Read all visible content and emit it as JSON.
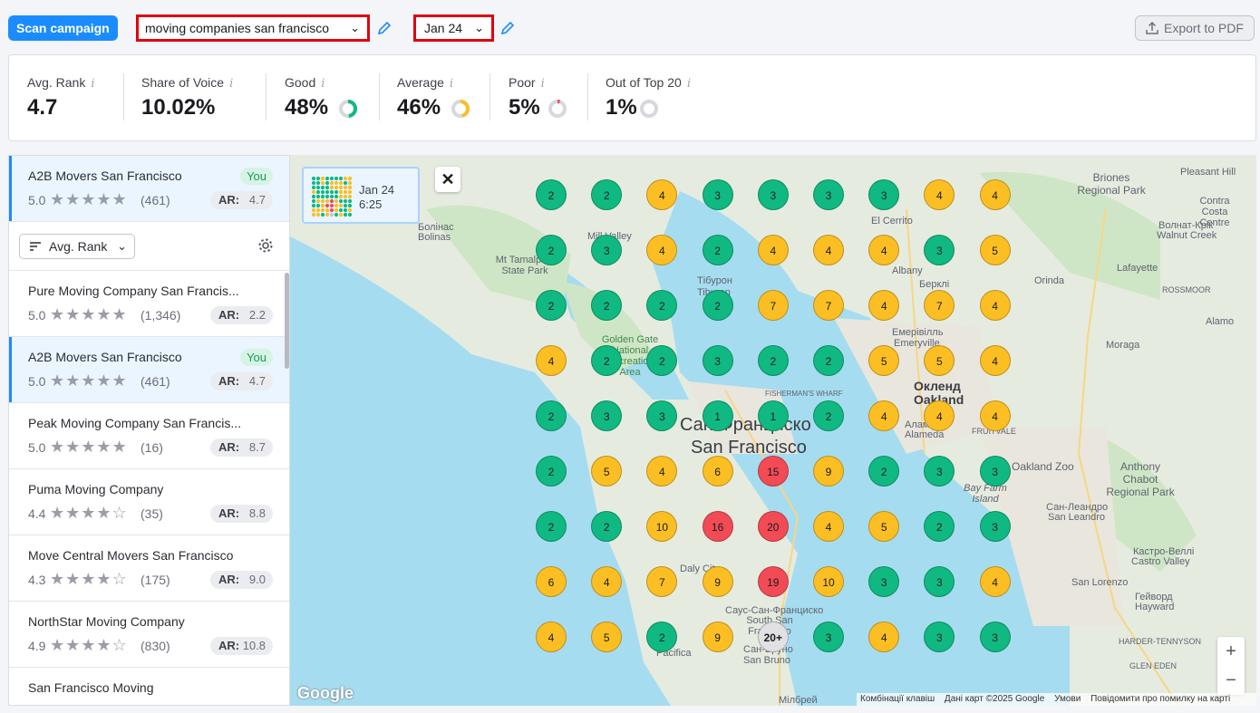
{
  "toolbar": {
    "scan_label": "Scan campaign",
    "keyword": "moving companies san francisco",
    "date": "Jan 24",
    "export_label": "Export to PDF"
  },
  "metrics": [
    {
      "label": "Avg. Rank",
      "value": "4.7"
    },
    {
      "label": "Share of Voice",
      "value": "10.02%"
    },
    {
      "label": "Good",
      "value": "48%",
      "ring_color": "#10b981",
      "fraction": 0.48
    },
    {
      "label": "Average",
      "value": "46%",
      "ring_color": "#fbbf24",
      "fraction": 0.46
    },
    {
      "label": "Poor",
      "value": "5%",
      "ring_color": "#f24b56",
      "fraction": 0.05
    },
    {
      "label": "Out of Top 20",
      "value": "1%",
      "ring_color": "#c2c5cc",
      "fraction": 0.01
    }
  ],
  "info_glyph": "i",
  "pinned": {
    "name": "A2B Movers San Francisco",
    "rating": "5.0",
    "stars": 5,
    "reviews": "(461)",
    "you": "You",
    "ar_label": "AR:",
    "ar": "4.7"
  },
  "sort": {
    "label": "Avg. Rank"
  },
  "businesses": [
    {
      "name": "Pure Moving Company San Francis...",
      "rating": "5.0",
      "stars": 5,
      "reviews": "(1,346)",
      "ar_label": "AR:",
      "ar": "2.2"
    },
    {
      "name": "A2B Movers San Francisco",
      "rating": "5.0",
      "stars": 5,
      "reviews": "(461)",
      "you": "You",
      "ar_label": "AR:",
      "ar": "4.7"
    },
    {
      "name": "Peak Moving Company San Francis...",
      "rating": "5.0",
      "stars": 5,
      "reviews": "(16)",
      "ar_label": "AR:",
      "ar": "8.7"
    },
    {
      "name": "Puma Moving Company",
      "rating": "4.4",
      "stars": 4,
      "reviews": "(35)",
      "ar_label": "AR:",
      "ar": "8.8"
    },
    {
      "name": "Move Central Movers San Francisco",
      "rating": "4.3",
      "stars": 4,
      "reviews": "(175)",
      "ar_label": "AR:",
      "ar": "9.0"
    },
    {
      "name": "NorthStar Moving Company",
      "rating": "4.9",
      "stars": 4,
      "reviews": "(830)",
      "ar_label": "AR:",
      "ar": "10.8"
    },
    {
      "name": "San Francisco Moving",
      "rating": "",
      "stars": 0,
      "reviews": "",
      "ar_label": "",
      "ar": ""
    }
  ],
  "snapshot": {
    "date": "Jan 24",
    "time": "6:25"
  },
  "grid": [
    [
      "2",
      "2",
      "4",
      "3",
      "3",
      "3",
      "3",
      "4",
      "4"
    ],
    [
      "2",
      "3",
      "4",
      "2",
      "4",
      "4",
      "4",
      "3",
      "5"
    ],
    [
      "2",
      "2",
      "2",
      "2",
      "7",
      "7",
      "4",
      "7",
      "4"
    ],
    [
      "4",
      "2",
      "2",
      "3",
      "2",
      "2",
      "5",
      "5",
      "4"
    ],
    [
      "2",
      "3",
      "3",
      "1",
      "1",
      "2",
      "4",
      "4",
      "4"
    ],
    [
      "2",
      "5",
      "4",
      "6",
      "15",
      "9",
      "2",
      "3",
      "3"
    ],
    [
      "2",
      "2",
      "10",
      "16",
      "20",
      "4",
      "5",
      "2",
      "3"
    ],
    [
      "6",
      "4",
      "7",
      "9",
      "19",
      "10",
      "3",
      "3",
      "4"
    ],
    [
      "4",
      "5",
      "2",
      "9",
      "20+",
      "3",
      "4",
      "3",
      "3"
    ]
  ],
  "map_labels": {
    "sf_uk": "Сан-Франциско",
    "sf_en": "San Francisco",
    "oakland_uk": "Окленд",
    "oakland_en": "Oakland",
    "tiburon": "Тібурон",
    "tiburon_en": "Tiburon",
    "bolinas": "Болінас",
    "bolinas_en": "Bolinas",
    "mt_tam": "Mt Tamalpais State Park",
    "el_cerrito": "El Cerrito",
    "albany": "Albany",
    "berkeley": "Берклі",
    "emeryville": "Емерівілль",
    "emeryville_en": "Emeryville",
    "alameda": "Аламіда",
    "alameda_en": "Alameda",
    "briones": "Briones Regional Park",
    "pleasant_hill": "Pleasant Hill",
    "contra_costa": "Contra Costa Centre",
    "walnut_creek": "Волнат-Крік",
    "walnut_creek_en": "Walnut Creek",
    "lafayette": "Lafayette",
    "orinda": "Orinda",
    "moraga": "Moraga",
    "alamo": "Alamo",
    "rossmoor": "ROSSMOOR",
    "oakland_zoo": "Oakland Zoo",
    "chabot": "Anthony Chabot Regional Park",
    "san_leandro": "Сан-Леандро",
    "san_leandro_en": "San Leandro",
    "castro_valley": "Кастро-Веллі",
    "castro_valley_en": "Castro Valley",
    "san_lorenzo": "San Lorenzo",
    "hayward": "Гейворд",
    "hayward_en": "Hayward",
    "daly_city": "Daly City",
    "ssf": "Саус-Сан-Франциско",
    "ssf_en": "South San Francisco",
    "san_bruno": "Сан-Бруно",
    "san_bruno_en": "San Bruno",
    "millbrae": "Мілбрей",
    "pacifica": "Pacifica",
    "bay_farm": "Bay Farm Island",
    "mill_valley": "Mill Valley",
    "fishermans": "FISHERMAN'S WHARF",
    "harder": "HARDER-TENNYSON",
    "glen_eden": "GLEN EDEN",
    "fruitvale": "FRUITVALE",
    "golden_gate": "Golden Gate National Recreation Area"
  },
  "map_footer": {
    "shortcuts": "Комбінації клавіш",
    "data": "Дані карт ©2025 Google",
    "terms": "Умови",
    "report": "Повідомити про помилку на карті"
  },
  "google": "Google",
  "colors": {
    "good": "#10b981",
    "average": "#fbbf24",
    "poor": "#f24b56",
    "accent": "#1a8cff"
  }
}
